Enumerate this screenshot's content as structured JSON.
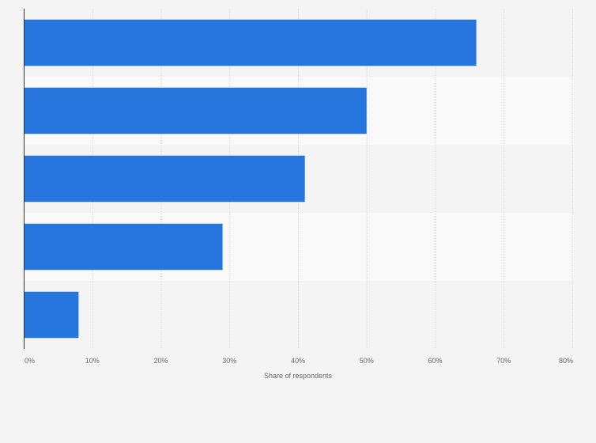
{
  "chart_data": {
    "type": "bar",
    "orientation": "horizontal",
    "categories": [
      "",
      "",
      "",
      "",
      ""
    ],
    "values": [
      66,
      50,
      41,
      29,
      8
    ],
    "xlabel": "Share of respondents",
    "ylabel": "",
    "xlim": [
      0,
      80
    ],
    "x_ticks": [
      "0%",
      "10%",
      "20%",
      "30%",
      "40%",
      "50%",
      "60%",
      "70%",
      "80%"
    ],
    "grid": true,
    "legend": "none",
    "colors": {
      "bar": "#2776dd",
      "band_dark": "#f4f4f4",
      "band_light": "#f9f9f9",
      "gridline": "#d9d9d9",
      "axis": "#333333"
    }
  }
}
